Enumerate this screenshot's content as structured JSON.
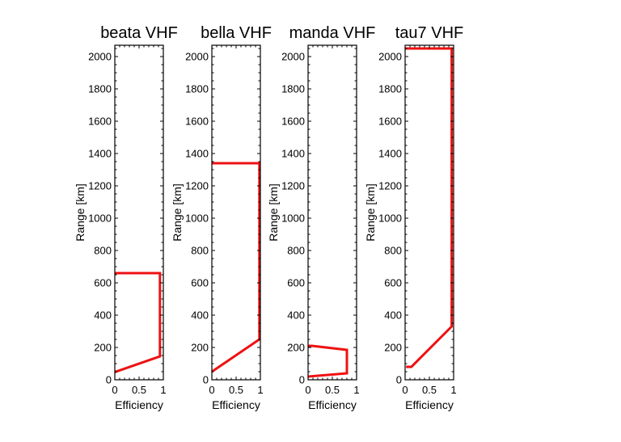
{
  "chart_data": [
    {
      "type": "line",
      "title": "beata VHF",
      "xlabel": "Efficiency",
      "ylabel": "Range [km]",
      "xlim": [
        0,
        1
      ],
      "ylim": [
        0,
        2070
      ],
      "x_ticks": [
        0,
        0.5,
        1
      ],
      "x_tick_labels": [
        "0",
        "0.5",
        "1"
      ],
      "y_ticks": [
        0,
        200,
        400,
        600,
        800,
        1000,
        1200,
        1400,
        1600,
        1800,
        2000
      ],
      "y_tick_labels": [
        "0",
        "200",
        "400",
        "600",
        "800",
        "1000",
        "1200",
        "1400",
        "1600",
        "1800",
        "2000"
      ],
      "grid": false,
      "series": [
        {
          "color": "#ee1111",
          "x": [
            0.0,
            0.93,
            0.93,
            0.0
          ],
          "y": [
            48,
            145,
            660,
            660
          ]
        }
      ]
    },
    {
      "type": "line",
      "title": "bella VHF",
      "xlabel": "Efficiency",
      "ylabel": "Range [km]",
      "xlim": [
        0,
        1
      ],
      "ylim": [
        0,
        2070
      ],
      "x_ticks": [
        0,
        0.5,
        1
      ],
      "x_tick_labels": [
        "0",
        "0.5",
        "1"
      ],
      "y_ticks": [
        0,
        200,
        400,
        600,
        800,
        1000,
        1200,
        1400,
        1600,
        1800,
        2000
      ],
      "y_tick_labels": [
        "0",
        "200",
        "400",
        "600",
        "800",
        "1000",
        "1200",
        "1400",
        "1600",
        "1800",
        "2000"
      ],
      "grid": false,
      "series": [
        {
          "color": "#ee1111",
          "x": [
            0.0,
            0.98,
            0.98,
            0.0
          ],
          "y": [
            50,
            250,
            1340,
            1340
          ]
        }
      ]
    },
    {
      "type": "line",
      "title": "manda VHF",
      "xlabel": "Efficiency",
      "ylabel": "Range [km]",
      "xlim": [
        0,
        1
      ],
      "ylim": [
        0,
        2070
      ],
      "x_ticks": [
        0,
        0.5,
        1
      ],
      "x_tick_labels": [
        "0",
        "0.5",
        "1"
      ],
      "y_ticks": [
        0,
        200,
        400,
        600,
        800,
        1000,
        1200,
        1400,
        1600,
        1800,
        2000
      ],
      "y_tick_labels": [
        "0",
        "200",
        "400",
        "600",
        "800",
        "1000",
        "1200",
        "1400",
        "1600",
        "1800",
        "2000"
      ],
      "grid": false,
      "series": [
        {
          "color": "#ee1111",
          "x": [
            0.0,
            0.8,
            0.8,
            0.08,
            0.0
          ],
          "y": [
            20,
            40,
            185,
            210,
            210
          ]
        }
      ]
    },
    {
      "type": "line",
      "title": "tau7 VHF",
      "xlabel": "Efficiency",
      "ylabel": "Range [km]",
      "xlim": [
        0,
        1
      ],
      "ylim": [
        0,
        2070
      ],
      "x_ticks": [
        0,
        0.5,
        1
      ],
      "x_tick_labels": [
        "0",
        "0.5",
        "1"
      ],
      "y_ticks": [
        0,
        200,
        400,
        600,
        800,
        1000,
        1200,
        1400,
        1600,
        1800,
        2000
      ],
      "y_tick_labels": [
        "0",
        "200",
        "400",
        "600",
        "800",
        "1000",
        "1200",
        "1400",
        "1600",
        "1800",
        "2000"
      ],
      "grid": false,
      "series": [
        {
          "color": "#ee1111",
          "x": [
            0.02,
            0.13,
            0.96,
            0.96,
            0.0
          ],
          "y": [
            80,
            80,
            330,
            2050,
            2050
          ]
        }
      ]
    }
  ]
}
